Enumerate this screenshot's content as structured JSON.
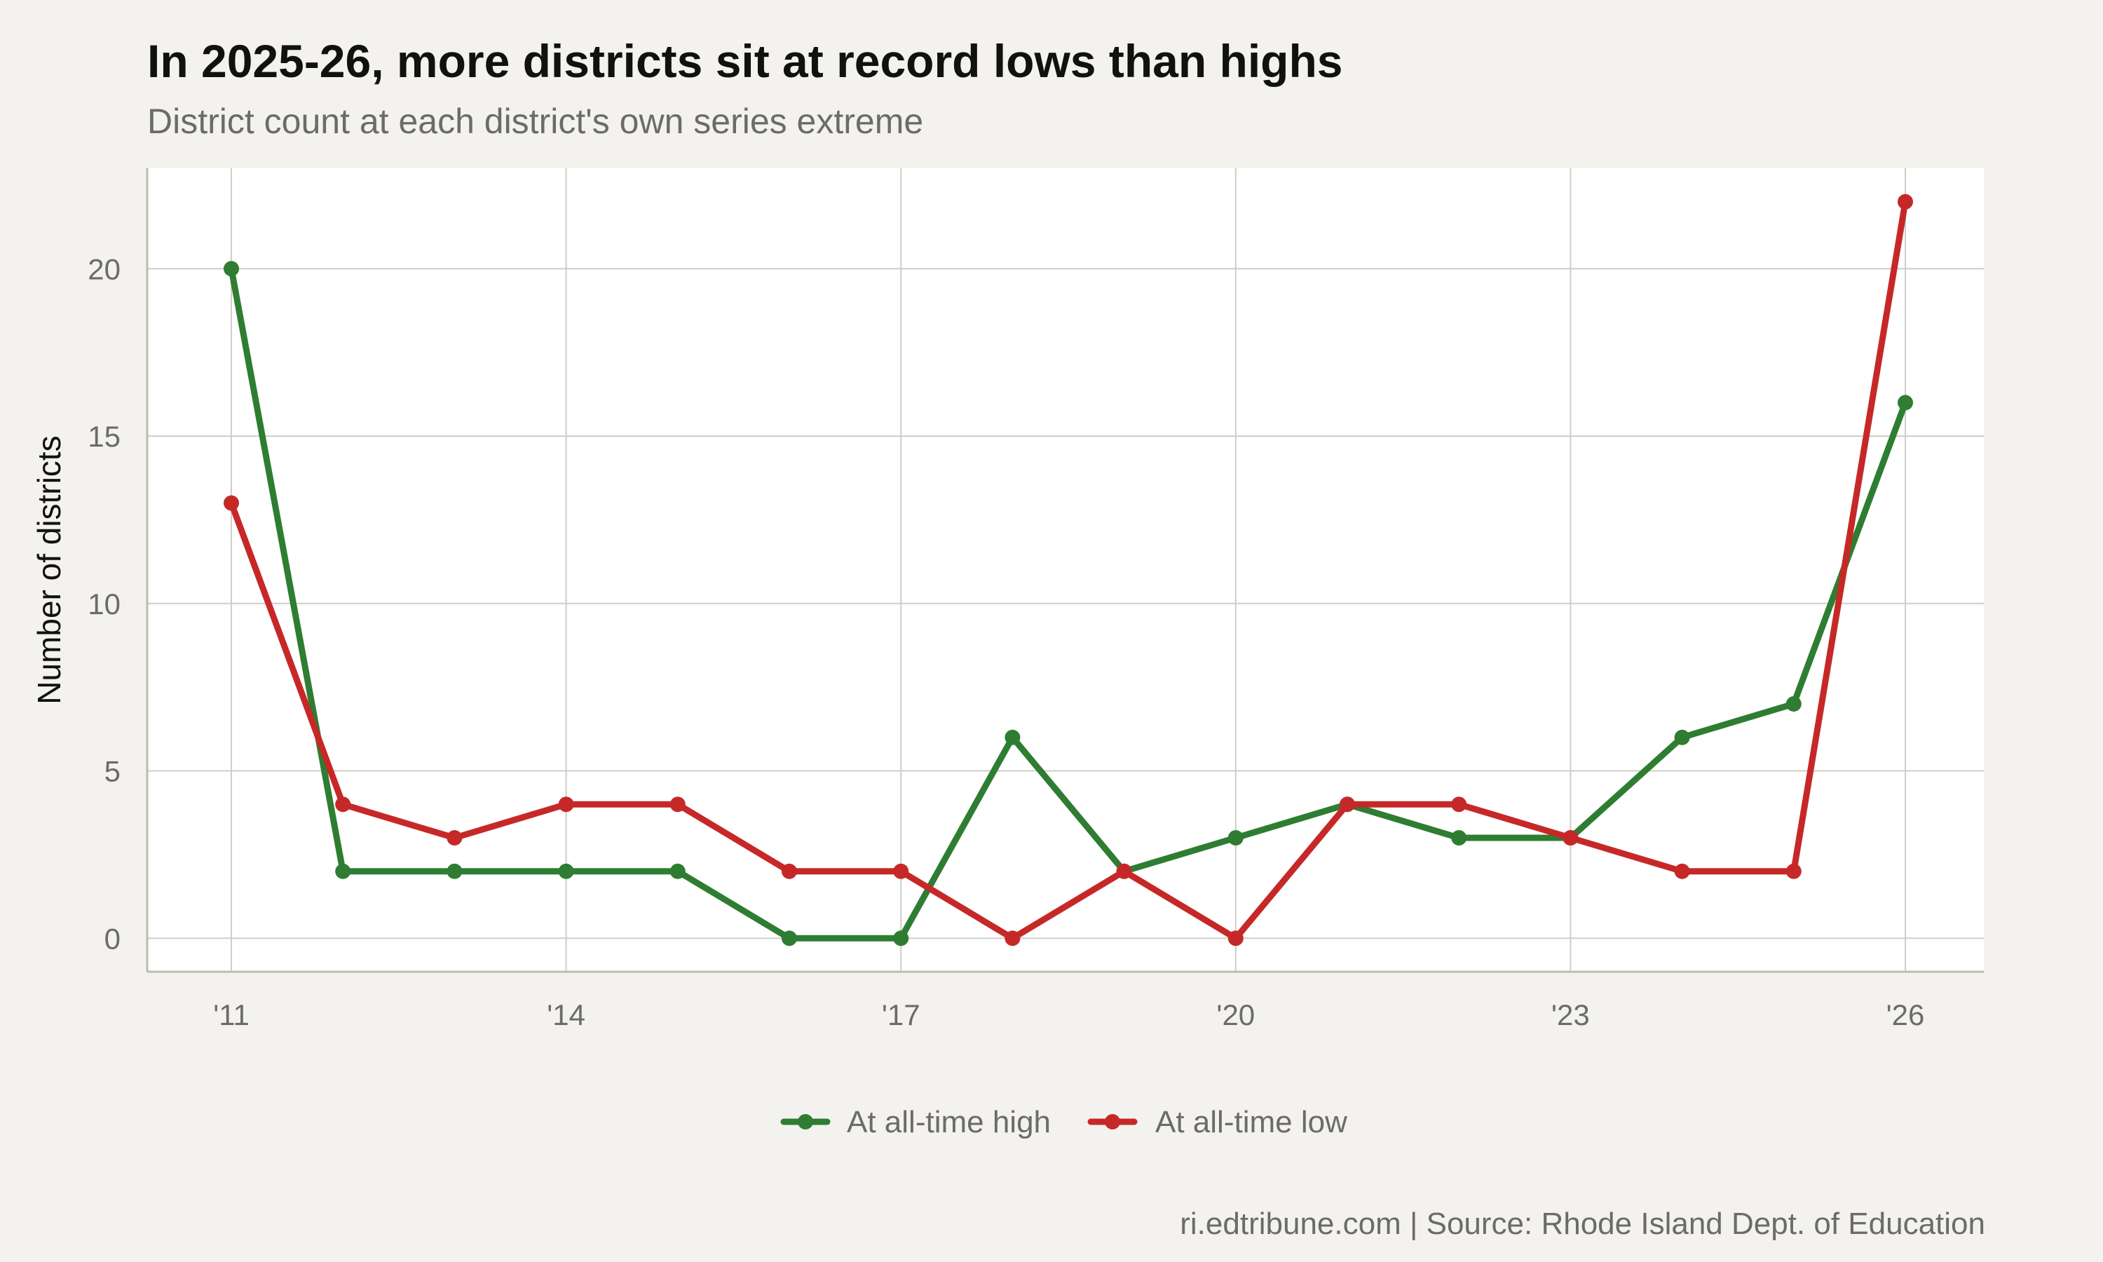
{
  "chart_data": {
    "type": "line",
    "title": "In 2025-26, more districts sit at record lows than highs",
    "subtitle": "District count at each district's own series extreme",
    "xlabel": "",
    "ylabel": "Number of districts",
    "caption": "ri.edtribune.com | Source: Rhode Island Dept. of Education",
    "x": [
      "'11",
      "'12",
      "'13",
      "'14",
      "'15",
      "'16",
      "'17",
      "'18",
      "'19",
      "'20",
      "'21",
      "'22",
      "'23",
      "'24",
      "'25",
      "'26"
    ],
    "x_tick_labels": [
      "'11",
      "'14",
      "'17",
      "'20",
      "'23",
      "'26"
    ],
    "y_ticks": [
      "0",
      "5",
      "10",
      "15",
      "20"
    ],
    "ylim": [
      -1,
      23
    ],
    "grid": true,
    "legend_position": "bottom",
    "series": [
      {
        "name": "At all-time high",
        "color": "#2e7d32",
        "values": [
          20,
          2,
          2,
          2,
          2,
          0,
          0,
          6,
          2,
          3,
          4,
          3,
          3,
          6,
          7,
          16
        ]
      },
      {
        "name": "At all-time low",
        "color": "#c62828",
        "values": [
          13,
          4,
          3,
          4,
          4,
          2,
          2,
          0,
          2,
          0,
          4,
          4,
          3,
          2,
          2,
          22
        ]
      }
    ]
  }
}
